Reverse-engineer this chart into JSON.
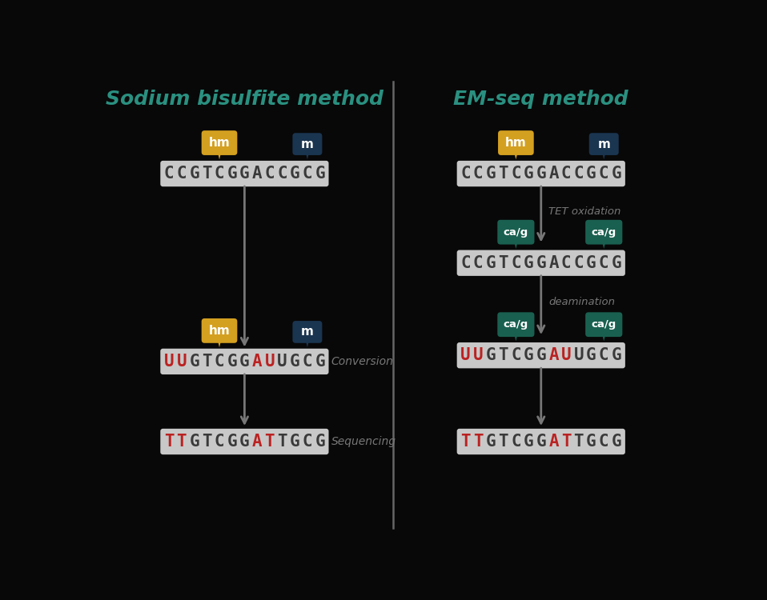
{
  "bg_color": "#080808",
  "title_left": "Sodium bisulfite method",
  "title_right": "EM-seq method",
  "title_color": "#2a9080",
  "divider_color": "#666666",
  "seq1": "CCGTCGGACCGCG",
  "seq2_rna": "UUGTCGGAUUGCG",
  "seq3_dna": "TTGTCGGATTGCG",
  "seq_bg": "#c8c8c8",
  "seq_text_color": "#3a3a3a",
  "seq_red_color": "#bb2222",
  "arrow_color": "#777777",
  "hm_color": "#d4a020",
  "m_color": "#1a3550",
  "cag_color": "#1a6050",
  "label_color": "#888888",
  "conversion_label": "Conversion",
  "sequencing_label": "Sequencing",
  "TET_label": "TET oxidation",
  "apobec_label": "deamination",
  "hm_idx": 4,
  "m_idx": 11,
  "cag_idx1": 4,
  "cag_idx2": 11
}
